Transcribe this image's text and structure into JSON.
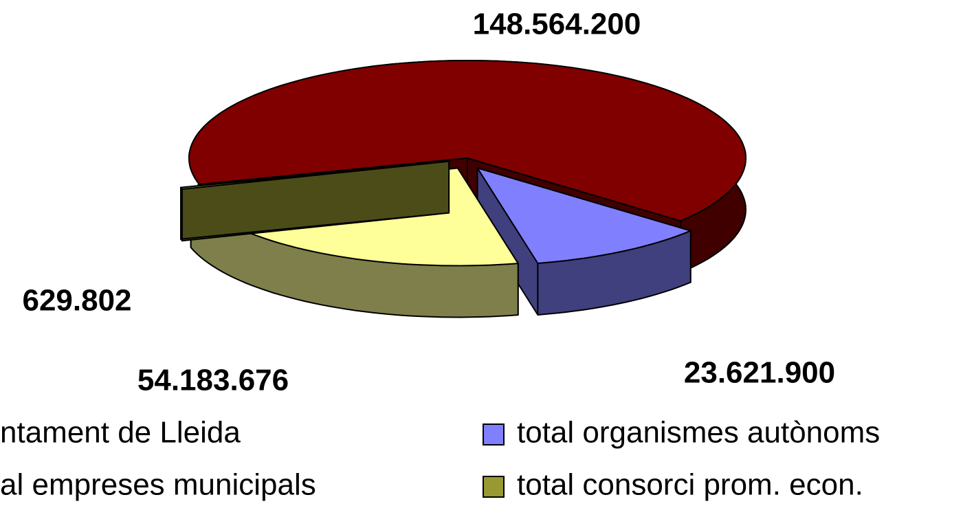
{
  "chart_data": {
    "type": "pie",
    "categories": [
      "ntament de Lleida",
      "total organismes autònoms",
      "al empreses municipals",
      "total consorci prom. econ."
    ],
    "values": [
      148564200,
      23621900,
      54183676,
      629802
    ],
    "value_labels": [
      "148.564.200",
      "23.621.900",
      "54.183.676",
      "629.802"
    ],
    "colors": [
      "#800000",
      "#8080ff",
      "#ffff99",
      "#999933"
    ]
  }
}
